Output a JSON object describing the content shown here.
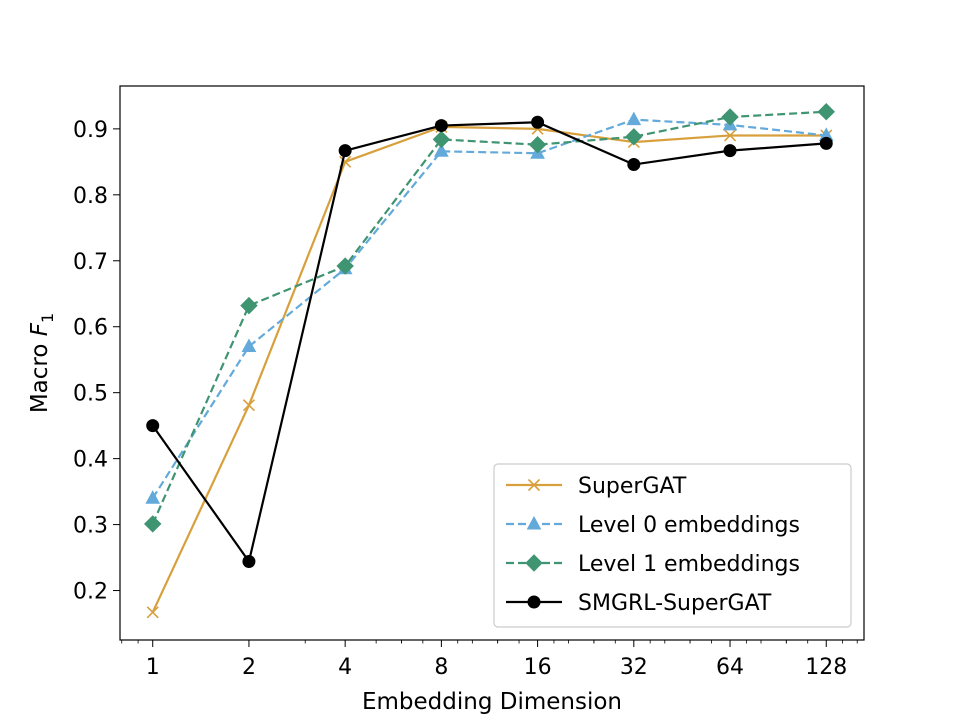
{
  "chart_data": {
    "type": "line",
    "x_scale": "log2",
    "x": [
      1,
      2,
      4,
      8,
      16,
      32,
      64,
      128
    ],
    "x_tick_labels": [
      "1",
      "2",
      "4",
      "8",
      "16",
      "32",
      "64",
      "128"
    ],
    "xlabel": "Embedding Dimension",
    "ylabel_prefix": "Macro ",
    "ylabel_symbol": "F",
    "ylabel_subscript": "1",
    "xlim": [
      0.79,
      168
    ],
    "ylim": [
      0.125,
      0.965
    ],
    "y_ticks": [
      0.2,
      0.3,
      0.4,
      0.5,
      0.6,
      0.7,
      0.8,
      0.9
    ],
    "y_tick_labels": [
      "0.2",
      "0.3",
      "0.4",
      "0.5",
      "0.6",
      "0.7",
      "0.8",
      "0.9"
    ],
    "grid": false,
    "legend_position": "bottom-right",
    "series": [
      {
        "name": "SuperGAT",
        "values": [
          0.167,
          0.481,
          0.85,
          0.903,
          0.9,
          0.88,
          0.89,
          0.89
        ],
        "color": "#d8a03c",
        "dash": "solid",
        "marker": "x"
      },
      {
        "name": "Level 0 embeddings",
        "values": [
          0.34,
          0.57,
          0.688,
          0.866,
          0.863,
          0.914,
          0.906,
          0.89
        ],
        "color": "#63aadb",
        "dash": "dashed",
        "marker": "triangle"
      },
      {
        "name": "Level 1 embeddings",
        "values": [
          0.301,
          0.632,
          0.692,
          0.884,
          0.876,
          0.888,
          0.918,
          0.926
        ],
        "color": "#3f9471",
        "dash": "dashed",
        "marker": "diamond"
      },
      {
        "name": "SMGRL-SuperGAT",
        "values": [
          0.45,
          0.244,
          0.867,
          0.905,
          0.91,
          0.846,
          0.867,
          0.878
        ],
        "color": "#000000",
        "dash": "solid",
        "marker": "circle"
      }
    ]
  }
}
